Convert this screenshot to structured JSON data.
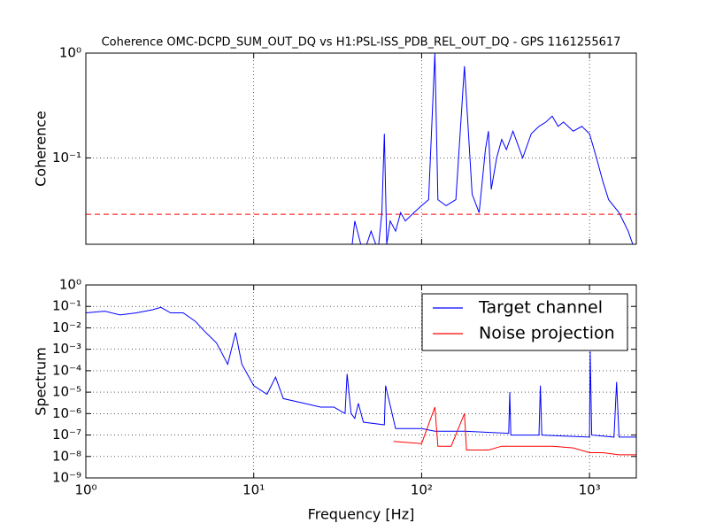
{
  "chart_data": [
    {
      "type": "line",
      "title": "Coherence OMC-DCPD_SUM_OUT_DQ vs H1:PSL-ISS_PDB_REL_OUT_DQ - GPS 1161255617",
      "ylabel": "Coherence",
      "xlog": true,
      "ylog": true,
      "grid": true,
      "xlim": [
        1,
        1900
      ],
      "ylim": [
        0.015,
        1
      ],
      "xticks": [
        {
          "value": 1,
          "label": "10⁰"
        },
        {
          "value": 10,
          "label": "10¹"
        },
        {
          "value": 100,
          "label": "10²"
        },
        {
          "value": 1000,
          "label": "10³"
        }
      ],
      "show_xtick_labels": false,
      "yticks": [
        {
          "value": 0.1,
          "label": "10⁻¹"
        },
        {
          "value": 1,
          "label": "10⁰"
        }
      ],
      "threshold": 0.029,
      "threshold_color": "#ff0000",
      "series": [
        {
          "name": "Coherence",
          "color": "#0000ff",
          "x": [
            38,
            40,
            45,
            50,
            55,
            58,
            60,
            62,
            65,
            70,
            75,
            80,
            90,
            100,
            110,
            120,
            125,
            140,
            160,
            180,
            200,
            220,
            240,
            250,
            260,
            280,
            300,
            320,
            350,
            400,
            450,
            500,
            550,
            600,
            650,
            700,
            800,
            900,
            1000,
            1100,
            1200,
            1300,
            1500,
            1700,
            1900
          ],
          "values": [
            0.012,
            0.025,
            0.012,
            0.02,
            0.013,
            0.03,
            0.17,
            0.015,
            0.025,
            0.02,
            0.03,
            0.025,
            0.03,
            0.035,
            0.04,
            1.0,
            0.04,
            0.035,
            0.04,
            0.75,
            0.045,
            0.03,
            0.12,
            0.18,
            0.05,
            0.1,
            0.15,
            0.12,
            0.18,
            0.1,
            0.17,
            0.2,
            0.22,
            0.25,
            0.2,
            0.22,
            0.18,
            0.2,
            0.17,
            0.1,
            0.06,
            0.04,
            0.03,
            0.02,
            0.012
          ]
        }
      ]
    },
    {
      "type": "line",
      "xlabel": "Frequency [Hz]",
      "ylabel": "Spectrum",
      "xlog": true,
      "ylog": true,
      "grid": true,
      "xlim": [
        1,
        1900
      ],
      "ylim": [
        1e-09,
        1
      ],
      "legend": "upper right",
      "show_xtick_labels": true,
      "xticks": [
        {
          "value": 1,
          "label": "10⁰"
        },
        {
          "value": 10,
          "label": "10¹"
        },
        {
          "value": 100,
          "label": "10²"
        },
        {
          "value": 1000,
          "label": "10³"
        }
      ],
      "yticks": [
        {
          "value": 1e-09,
          "label": "10⁻⁹"
        },
        {
          "value": 1e-08,
          "label": "10⁻⁸"
        },
        {
          "value": 1e-07,
          "label": "10⁻⁷"
        },
        {
          "value": 1e-06,
          "label": "10⁻⁶"
        },
        {
          "value": 1e-05,
          "label": "10⁻⁵"
        },
        {
          "value": 0.0001,
          "label": "10⁻⁴"
        },
        {
          "value": 0.001,
          "label": "10⁻³"
        },
        {
          "value": 0.01,
          "label": "10⁻²"
        },
        {
          "value": 0.1,
          "label": "10⁻¹"
        },
        {
          "value": 1,
          "label": "10⁰"
        }
      ],
      "series": [
        {
          "name": "Target channel",
          "color": "#0000ff",
          "x": [
            1,
            1.3,
            1.6,
            2,
            2.5,
            2.8,
            3.2,
            3.8,
            4.5,
            5,
            6,
            7,
            7.8,
            8.5,
            10,
            12,
            13.5,
            15,
            20,
            25,
            30,
            35,
            36,
            38,
            40,
            42,
            45,
            60,
            61,
            70,
            100,
            120,
            180,
            330,
            335,
            340,
            500,
            510,
            520,
            1000,
            1010,
            1030,
            1400,
            1450,
            1500,
            1900
          ],
          "values": [
            0.05,
            0.06,
            0.04,
            0.05,
            0.07,
            0.09,
            0.05,
            0.05,
            0.02,
            0.008,
            0.002,
            0.0002,
            0.006,
            0.0002,
            2e-05,
            8e-06,
            5e-05,
            5e-06,
            3e-06,
            2e-06,
            2e-06,
            1e-06,
            7e-05,
            1e-06,
            6e-07,
            3e-06,
            4e-07,
            3e-07,
            2e-05,
            2e-07,
            2e-07,
            1.5e-07,
            1.5e-07,
            1.2e-07,
            1e-05,
            1e-07,
            1e-07,
            2e-05,
            1e-07,
            8e-08,
            0.0008,
            1e-07,
            8e-08,
            3e-05,
            8e-08,
            8e-08
          ]
        },
        {
          "name": "Noise projection",
          "color": "#ff0000",
          "x": [
            68,
            100,
            120,
            125,
            150,
            180,
            185,
            250,
            300,
            400,
            600,
            800,
            1000,
            1200,
            1500,
            1900
          ],
          "values": [
            5e-08,
            4e-08,
            2e-06,
            3e-08,
            3e-08,
            1e-06,
            2e-08,
            2e-08,
            3e-08,
            3e-08,
            3e-08,
            2.5e-08,
            1.5e-08,
            1.5e-08,
            1.2e-08,
            1.2e-08
          ]
        }
      ]
    }
  ]
}
